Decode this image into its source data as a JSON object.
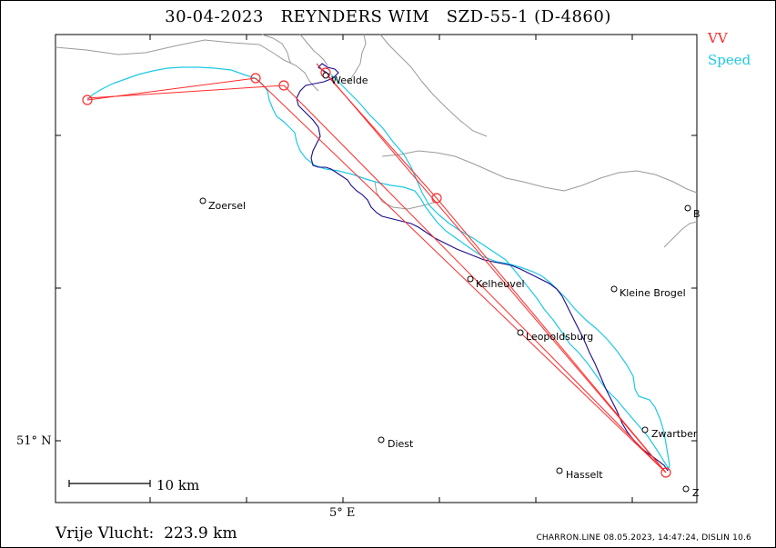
{
  "title": "30-04-2023   REYNDERS WIM   SZD-55-1 (D-4860)",
  "legend": {
    "vv_label": "VV",
    "speed_label": "Speed",
    "vv_color": "#ff2a2a",
    "speed_color": "#1ec8e6",
    "track_color": "#1a0a8c",
    "border_color": "#9a9a9a"
  },
  "axes": {
    "lat_label": "51° N",
    "lon_label": "5° E"
  },
  "scale": {
    "label": "10 km"
  },
  "free_flight": "Vrije Vlucht:  223.9 km",
  "footer": "CHARRON.LINE 08.05.2023, 14:47:24, DISLIN 10.6",
  "cities": [
    {
      "name": "Weelde"
    },
    {
      "name": "Zoersel"
    },
    {
      "name": "B"
    },
    {
      "name": "Kelheuvel"
    },
    {
      "name": "Kleine Brogel"
    },
    {
      "name": "Leopoldsburg"
    },
    {
      "name": "Zwartber"
    },
    {
      "name": "Diest"
    },
    {
      "name": "Hasselt"
    },
    {
      "name": "Z"
    }
  ]
}
